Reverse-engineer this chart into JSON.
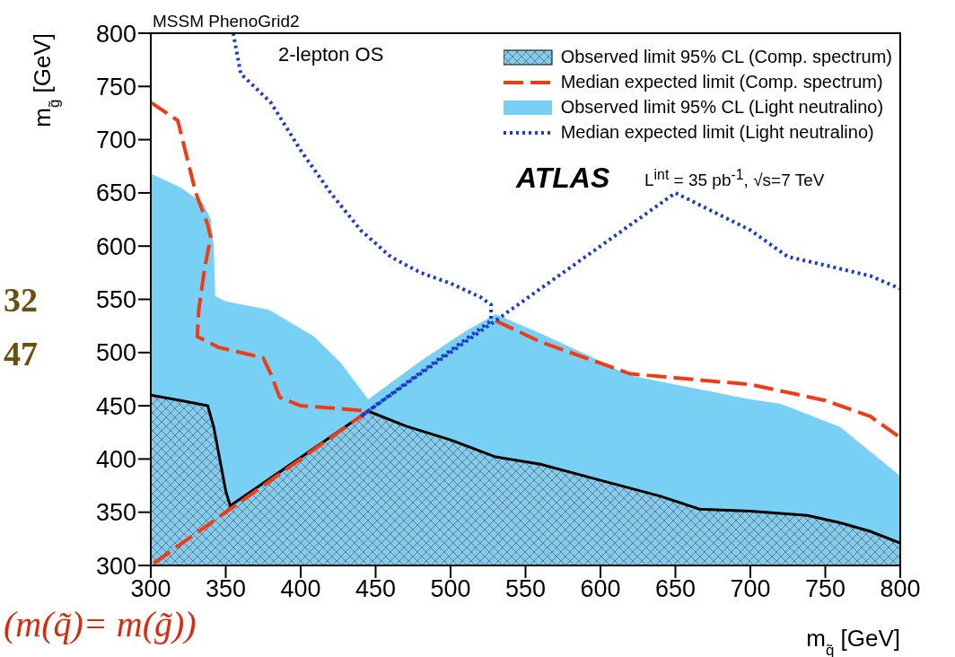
{
  "chart_data": {
    "type": "area",
    "title": "MSSM PhenoGrid2",
    "xlabel": "m$_{q̃}$ [GeV]",
    "ylabel": "m$_{g̃}$ [GeV]",
    "xlim": [
      300,
      800
    ],
    "xticks": [
      300,
      350,
      400,
      450,
      500,
      550,
      600,
      650,
      700,
      750,
      800
    ],
    "ylim": [
      300,
      800
    ],
    "yticks": [
      300,
      350,
      400,
      450,
      500,
      550,
      600,
      650,
      700,
      750,
      800
    ],
    "legend": "top right",
    "annotations": [
      "2-lepton OS",
      "ATLAS",
      "L$^{int}$ = 35 pb$^{-1}$, √s=7 TeV",
      "32",
      "47",
      "(m(q̃)= m(g̃))"
    ],
    "series": [
      {
        "name": "Observed limit 95% CL (Comp. spectrum)",
        "line_style": "solid",
        "color": "#8c6e6e",
        "x": [
          300,
          320,
          338,
          342,
          346,
          350,
          353,
          445,
          470,
          500,
          530,
          560,
          600,
          640,
          666,
          700,
          738,
          760,
          780,
          800
        ],
        "values": [
          460,
          455,
          450,
          430,
          400,
          370,
          356,
          445,
          431,
          418,
          402,
          395,
          380,
          365,
          353,
          351,
          347,
          340,
          332,
          321
        ]
      },
      {
        "name": "Median expected limit (Comp. spectrum)",
        "type": "line",
        "line_style": "dashed",
        "color": "#f03c14",
        "x": [
          300,
          318,
          330,
          338,
          340,
          336,
          332,
          331,
          345,
          360,
          375,
          380,
          386,
          400,
          420,
          445,
          300,
          460,
          530,
          560,
          600,
          620,
          700,
          750,
          780,
          800
        ],
        "values": [
          735,
          718,
          650,
          620,
          608,
          580,
          540,
          515,
          505,
          500,
          495,
          480,
          458,
          450,
          448,
          445,
          300,
          null,
          530,
          510,
          490,
          480,
          470,
          455,
          440,
          420
        ]
      },
      {
        "name": "Observed limit 95% CL (Light neutralino)",
        "color": "#78d0f5",
        "x": [
          300,
          320,
          335,
          340,
          342,
          343,
          350,
          379,
          409,
          427,
          445,
          480,
          510,
          530,
          560,
          600,
          618,
          650,
          700,
          720,
          760,
          800
        ],
        "values": [
          668,
          655,
          640,
          625,
          600,
          553,
          548,
          540,
          515,
          490,
          456,
          492,
          520,
          536,
          518,
          492,
          479,
          470,
          456,
          452,
          430,
          384
        ]
      },
      {
        "name": "Median expected limit (Light neutralino)",
        "type": "line",
        "line_style": "dotted",
        "color": "#1a3ccc",
        "x": [
          355,
          360,
          380,
          400,
          420,
          440,
          460,
          480,
          500,
          520,
          527,
          527,
          440,
          650,
          700,
          725,
          750,
          780,
          800
        ],
        "values": [
          800,
          762,
          735,
          690,
          650,
          615,
          590,
          575,
          565,
          552,
          545,
          530,
          440,
          650,
          615,
          590,
          582,
          572,
          560
        ]
      }
    ]
  }
}
